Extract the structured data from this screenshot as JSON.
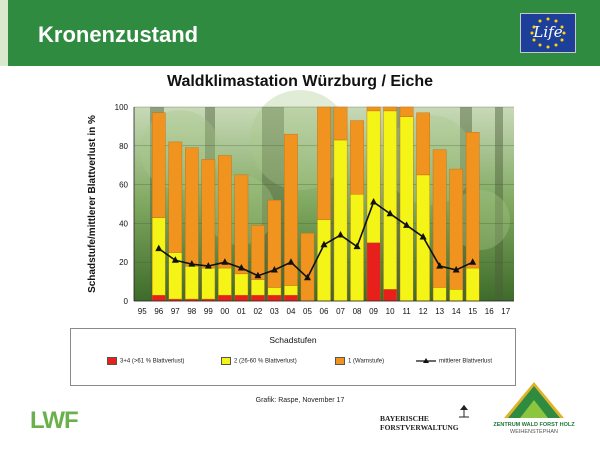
{
  "header": {
    "title": "Kronenzustand"
  },
  "logos": {
    "eu_life": "Life",
    "lwf": "LWF",
    "bayerische_line1": "BAYERISCHE",
    "bayerische_line2": "FORSTVERWALTUNG",
    "zentrum_line1": "ZENTRUM WALD FORST HOLZ",
    "zentrum_line2": "WEIHENSTEPHAN"
  },
  "source_note": "Grafik: Raspe, November 17",
  "colors": {
    "header_green": "#2e8b40",
    "red": "#e8201b",
    "yellow": "#f4f416",
    "orange": "#f0941f",
    "line": "#111111"
  },
  "chart_data": {
    "type": "bar",
    "stacked": true,
    "title": "Waldklimastation Würzburg / Eiche",
    "ylabel": "Schadstufe/mittlerer Blattverlust in %",
    "ylim": [
      0,
      100
    ],
    "yticks": [
      0,
      20,
      40,
      60,
      80,
      100
    ],
    "categories": [
      "95",
      "96",
      "97",
      "98",
      "99",
      "00",
      "01",
      "02",
      "03",
      "04",
      "05",
      "06",
      "07",
      "08",
      "09",
      "10",
      "11",
      "12",
      "13",
      "14",
      "15",
      "16",
      "17"
    ],
    "legend_title": "Schadstufen",
    "series": [
      {
        "name": "3+4 (>61 % Blattverlust)",
        "color": "#e8201b",
        "values": [
          0,
          3,
          1,
          1,
          1,
          3,
          3,
          3,
          3,
          3,
          0,
          0,
          0,
          0,
          30,
          6,
          0,
          0,
          0,
          0,
          0,
          0,
          0
        ]
      },
      {
        "name": "2 (26-60 % Blattverlust)",
        "color": "#f4f416",
        "values": [
          0,
          40,
          24,
          17,
          16,
          14,
          11,
          8,
          4,
          5,
          0,
          42,
          83,
          55,
          68,
          92,
          95,
          65,
          7,
          6,
          17,
          0,
          0
        ]
      },
      {
        "name": "1 (Warnstufe)",
        "color": "#f0941f",
        "values": [
          0,
          54,
          57,
          61,
          56,
          58,
          51,
          28,
          45,
          78,
          35,
          58,
          17,
          38,
          2,
          2,
          5,
          32,
          71,
          62,
          70,
          0,
          0
        ]
      }
    ],
    "line": {
      "name": "mittlerer Blattverlust",
      "values": [
        null,
        27,
        21,
        19,
        18,
        20,
        17,
        13,
        16,
        20,
        12,
        29,
        34,
        28,
        51,
        45,
        39,
        33,
        18,
        16,
        20,
        null,
        null
      ]
    },
    "grid": true
  }
}
